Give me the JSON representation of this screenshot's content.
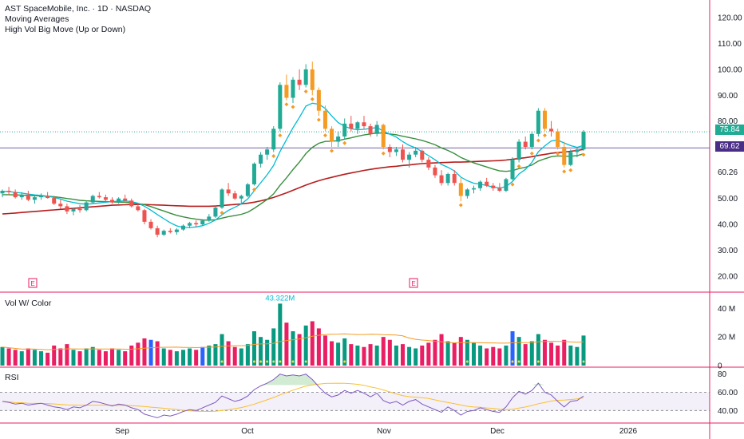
{
  "header": {
    "symbol_line": "AST SpaceMobile, Inc. · 1D · NASDAQ",
    "indicator_1": "Moving Averages",
    "indicator_2": "High Vol Big Move (Up or Down)"
  },
  "volume_pane": {
    "label": "Vol W/ Color",
    "peak_label": "43.322M"
  },
  "rsi_pane": {
    "label": "RSI"
  },
  "earnings_marker": "E",
  "price_badges": {
    "last": "75.84",
    "ma": "69.62"
  },
  "colors": {
    "up": "#26a69a",
    "down": "#ef5350",
    "big_up": "#22ab94",
    "big_down": "#f7525f",
    "orange": "#f59a23",
    "volume_up": "#089981",
    "volume_down": "#e91e63",
    "volume_blue": "#2962ff",
    "ma_fast": "#00bcd4",
    "ma_mid": "#388e3c",
    "ma_slow": "#b71c1c",
    "rsi_line": "#7e57c2",
    "rsi_ma": "#fbc02d",
    "pane_separator": "#e91e63",
    "badge_last": "#22ab94",
    "badge_ma": "#4a2d87"
  },
  "chart_data": {
    "type": "candlestick",
    "price_axis": {
      "ticks": [
        "120.00",
        "110.00",
        "100.00",
        "90.00",
        "80.00",
        "60.26",
        "50.00",
        "40.00",
        "30.00",
        "20.00"
      ],
      "ylim": [
        15,
        125
      ]
    },
    "volume_axis": {
      "ticks": [
        "40 M",
        "20 M",
        "0"
      ],
      "ylim": [
        0,
        48
      ]
    },
    "rsi_axis": {
      "ticks": [
        "80",
        "60.00",
        "40.00"
      ],
      "ylim": [
        28,
        85
      ],
      "band": [
        40,
        60
      ]
    },
    "x_ticks": [
      "Sep",
      "Oct",
      "Nov",
      "Dec",
      "2026"
    ],
    "candles": [
      [
        52.0,
        53.5,
        50.5,
        53.0
      ],
      [
        53.0,
        54.5,
        51.5,
        52.5
      ],
      [
        52.5,
        53.5,
        50.0,
        50.5
      ],
      [
        50.5,
        52.5,
        49.5,
        51.5
      ],
      [
        51.5,
        53.0,
        49.0,
        49.5
      ],
      [
        49.5,
        51.0,
        48.0,
        50.5
      ],
      [
        50.5,
        52.0,
        49.5,
        51.0
      ],
      [
        51.0,
        52.5,
        50.0,
        50.2
      ],
      [
        50.2,
        51.0,
        47.5,
        48.0
      ],
      [
        48.0,
        49.5,
        46.0,
        47.0
      ],
      [
        47.0,
        48.0,
        44.0,
        45.0
      ],
      [
        45.0,
        46.5,
        43.5,
        46.0
      ],
      [
        46.0,
        47.5,
        44.5,
        45.5
      ],
      [
        45.5,
        49.0,
        45.0,
        48.5
      ],
      [
        48.5,
        51.5,
        48.0,
        51.0
      ],
      [
        51.0,
        52.5,
        50.0,
        50.5
      ],
      [
        50.5,
        51.5,
        48.5,
        49.5
      ],
      [
        49.5,
        50.5,
        48.0,
        48.5
      ],
      [
        48.5,
        50.5,
        48.0,
        50.0
      ],
      [
        50.0,
        51.5,
        49.0,
        49.2
      ],
      [
        49.2,
        50.0,
        46.5,
        47.0
      ],
      [
        47.0,
        48.0,
        45.0,
        45.5
      ],
      [
        45.5,
        46.0,
        40.0,
        41.0
      ],
      [
        41.0,
        42.0,
        38.0,
        38.5
      ],
      [
        38.5,
        39.5,
        35.0,
        36.0
      ],
      [
        36.0,
        38.0,
        35.5,
        37.5
      ],
      [
        37.5,
        38.5,
        36.5,
        37.0
      ],
      [
        37.0,
        38.5,
        36.0,
        38.0
      ],
      [
        38.0,
        40.0,
        37.5,
        39.5
      ],
      [
        39.5,
        41.0,
        38.5,
        40.5
      ],
      [
        40.5,
        41.5,
        39.0,
        40.0
      ],
      [
        40.0,
        42.0,
        39.5,
        41.5
      ],
      [
        41.5,
        44.0,
        41.0,
        43.0
      ],
      [
        43.0,
        47.0,
        42.5,
        46.5
      ],
      [
        46.5,
        54.0,
        46.0,
        53.5
      ],
      [
        53.5,
        56.0,
        51.0,
        52.0
      ],
      [
        52.0,
        53.0,
        49.5,
        50.0
      ],
      [
        50.0,
        51.5,
        48.0,
        51.0
      ],
      [
        51.0,
        56.0,
        50.5,
        55.5
      ],
      [
        55.5,
        64.0,
        55.0,
        63.5
      ],
      [
        63.5,
        68.0,
        62.0,
        67.0
      ],
      [
        67.0,
        70.0,
        65.0,
        69.0
      ],
      [
        69.0,
        78.0,
        68.0,
        77.0
      ],
      [
        77.0,
        95.0,
        76.0,
        94.0
      ],
      [
        94.0,
        98.0,
        88.0,
        89.0
      ],
      [
        89.0,
        97.0,
        87.0,
        96.0
      ],
      [
        96.0,
        100.0,
        92.0,
        94.0
      ],
      [
        94.0,
        102.0,
        93.0,
        100.0
      ],
      [
        100.0,
        103.0,
        90.0,
        92.0
      ],
      [
        92.0,
        93.0,
        82.0,
        84.0
      ],
      [
        84.0,
        86.0,
        76.0,
        77.0
      ],
      [
        77.0,
        78.0,
        70.0,
        72.0
      ],
      [
        72.0,
        76.0,
        70.0,
        74.0
      ],
      [
        74.0,
        81.0,
        73.0,
        79.0
      ],
      [
        79.0,
        82.0,
        76.0,
        77.0
      ],
      [
        77.0,
        80.0,
        75.0,
        79.5
      ],
      [
        79.5,
        82.0,
        77.0,
        78.0
      ],
      [
        78.0,
        79.0,
        74.0,
        75.0
      ],
      [
        75.0,
        80.0,
        74.0,
        78.5
      ],
      [
        78.5,
        79.0,
        69.0,
        70.0
      ],
      [
        70.0,
        71.0,
        66.0,
        68.0
      ],
      [
        68.0,
        70.0,
        66.5,
        69.0
      ],
      [
        69.0,
        71.0,
        64.0,
        65.0
      ],
      [
        65.0,
        68.0,
        62.0,
        67.0
      ],
      [
        67.0,
        70.0,
        66.0,
        68.5
      ],
      [
        68.5,
        69.0,
        64.0,
        65.0
      ],
      [
        65.0,
        66.0,
        61.0,
        62.0
      ],
      [
        62.0,
        63.0,
        58.0,
        59.0
      ],
      [
        59.0,
        61.0,
        55.0,
        56.0
      ],
      [
        56.0,
        60.0,
        55.0,
        59.5
      ],
      [
        59.5,
        61.0,
        55.0,
        56.0
      ],
      [
        56.0,
        58.0,
        49.0,
        51.0
      ],
      [
        51.0,
        54.0,
        50.0,
        53.5
      ],
      [
        53.5,
        55.0,
        52.0,
        54.0
      ],
      [
        54.0,
        57.0,
        53.0,
        56.5
      ],
      [
        56.5,
        58.0,
        54.5,
        55.0
      ],
      [
        55.0,
        56.0,
        53.0,
        54.0
      ],
      [
        54.0,
        56.0,
        52.5,
        53.0
      ],
      [
        53.0,
        58.0,
        52.5,
        57.5
      ],
      [
        57.5,
        66.0,
        57.0,
        65.0
      ],
      [
        65.0,
        73.0,
        64.0,
        72.0
      ],
      [
        72.0,
        74.0,
        69.0,
        70.0
      ],
      [
        70.0,
        76.0,
        69.0,
        75.0
      ],
      [
        75.0,
        85.0,
        74.0,
        84.0
      ],
      [
        84.0,
        85.0,
        76.0,
        77.0
      ],
      [
        77.0,
        80.0,
        74.0,
        76.0
      ],
      [
        76.0,
        77.0,
        69.0,
        70.0
      ],
      [
        70.0,
        72.0,
        62.0,
        63.0
      ],
      [
        63.0,
        69.0,
        62.5,
        68.0
      ],
      [
        68.0,
        70.0,
        66.0,
        69.0
      ],
      [
        69.0,
        76.5,
        68.5,
        75.84
      ]
    ],
    "volume": [
      13,
      12,
      11,
      10,
      12,
      11,
      10,
      9,
      14,
      12,
      15,
      11,
      10,
      12,
      13,
      11,
      10,
      12,
      11,
      10,
      14,
      16,
      19,
      18,
      17,
      12,
      11,
      10,
      11,
      12,
      11,
      13,
      14,
      15,
      22,
      17,
      13,
      12,
      15,
      24,
      20,
      18,
      26,
      43.322,
      30,
      24,
      22,
      28,
      31,
      26,
      21,
      17,
      16,
      19,
      15,
      14,
      13,
      15,
      14,
      20,
      18,
      14,
      15,
      13,
      12,
      14,
      16,
      18,
      22,
      17,
      16,
      20,
      18,
      16,
      14,
      12,
      13,
      12,
      14,
      24,
      20,
      15,
      17,
      22,
      18,
      16,
      14,
      18,
      14,
      13,
      21
    ],
    "rsi": [
      50,
      49,
      47,
      48,
      46,
      47,
      48,
      46,
      44,
      43,
      41,
      44,
      43,
      46,
      50,
      49,
      47,
      45,
      47,
      46,
      43,
      41,
      36,
      34,
      32,
      35,
      34,
      36,
      39,
      41,
      40,
      43,
      46,
      49,
      56,
      53,
      50,
      52,
      56,
      63,
      67,
      70,
      74,
      80,
      78,
      79,
      78,
      80,
      74,
      66,
      59,
      55,
      57,
      62,
      59,
      62,
      59,
      55,
      59,
      51,
      48,
      50,
      46,
      50,
      52,
      47,
      44,
      41,
      38,
      44,
      40,
      35,
      39,
      40,
      43,
      41,
      39,
      38,
      44,
      54,
      61,
      58,
      62,
      70,
      60,
      57,
      50,
      44,
      50,
      51,
      56
    ],
    "ma_fast": [
      52.8,
      52.7,
      52.4,
      52.1,
      51.7,
      51.4,
      51.2,
      50.9,
      50.4,
      49.8,
      49.0,
      48.5,
      48.0,
      47.8,
      48.0,
      48.3,
      48.6,
      48.8,
      49.0,
      49.1,
      48.8,
      48.2,
      47.0,
      45.5,
      43.8,
      42.2,
      40.6,
      39.4,
      38.8,
      38.8,
      39.0,
      39.5,
      40.4,
      41.7,
      43.7,
      45.4,
      46.6,
      47.9,
      49.9,
      53.0,
      56.1,
      59.2,
      62.8,
      68.2,
      72.8,
      77.4,
      81.4,
      85.8,
      86.9,
      86.5,
      84.9,
      82.0,
      79.4,
      78.0,
      77.0,
      76.6,
      76.8,
      77.1,
      77.5,
      76.1,
      74.9,
      73.8,
      72.0,
      70.6,
      69.6,
      68.1,
      66.6,
      65.0,
      63.2,
      62.1,
      60.7,
      58.3,
      56.9,
      55.9,
      55.6,
      55.0,
      54.5,
      54.1,
      54.6,
      56.6,
      59.5,
      61.3,
      64.0,
      68.1,
      70.4,
      72.3,
      72.6,
      71.5,
      70.5,
      69.8,
      70.6
    ],
    "ma_mid": [
      51.5,
      51.5,
      51.4,
      51.3,
      51.2,
      51.1,
      51.0,
      50.9,
      50.7,
      50.4,
      50.0,
      49.7,
      49.3,
      49.1,
      49.0,
      48.9,
      48.8,
      48.7,
      48.6,
      48.6,
      48.4,
      48.1,
      47.6,
      46.9,
      46.0,
      45.2,
      44.3,
      43.5,
      42.9,
      42.4,
      42.0,
      41.7,
      41.6,
      41.8,
      42.4,
      43.0,
      43.4,
      43.9,
      44.7,
      46.2,
      47.9,
      49.6,
      51.8,
      55.1,
      58.0,
      61.2,
      64.1,
      67.4,
      69.8,
      71.4,
      72.1,
      72.2,
      72.4,
      73.0,
      73.5,
      74.1,
      74.6,
      75.0,
      75.4,
      75.3,
      75.0,
      74.7,
      74.1,
      73.6,
      73.1,
      72.5,
      71.7,
      70.8,
      69.6,
      68.6,
      67.4,
      65.9,
      64.8,
      63.8,
      63.0,
      62.2,
      61.4,
      60.7,
      60.5,
      60.8,
      61.6,
      62.1,
      63.0,
      64.5,
      65.4,
      66.2,
      66.5,
      66.4,
      66.4,
      66.6,
      67.3
    ],
    "ma_slow": [
      44.0,
      44.2,
      44.4,
      44.6,
      44.8,
      45.0,
      45.2,
      45.4,
      45.6,
      45.8,
      46.0,
      46.2,
      46.4,
      46.6,
      46.8,
      47.0,
      47.2,
      47.4,
      47.5,
      47.6,
      47.7,
      47.7,
      47.7,
      47.6,
      47.5,
      47.4,
      47.3,
      47.2,
      47.1,
      47.0,
      47.0,
      47.0,
      47.0,
      47.1,
      47.3,
      47.5,
      47.7,
      47.9,
      48.2,
      48.6,
      49.1,
      49.7,
      50.4,
      51.3,
      52.2,
      53.2,
      54.2,
      55.2,
      56.1,
      56.9,
      57.6,
      58.2,
      58.8,
      59.4,
      59.9,
      60.4,
      60.9,
      61.3,
      61.7,
      62.0,
      62.3,
      62.5,
      62.8,
      63.0,
      63.3,
      63.5,
      63.7,
      63.8,
      63.9,
      64.0,
      64.1,
      64.1,
      64.2,
      64.3,
      64.4,
      64.5,
      64.6,
      64.7,
      64.9,
      65.2,
      65.5,
      65.8,
      66.2,
      66.7,
      67.1,
      67.5,
      67.8,
      68.0,
      68.3,
      68.6,
      69.0
    ],
    "last_price": 75.84,
    "ma_price": 69.62
  }
}
